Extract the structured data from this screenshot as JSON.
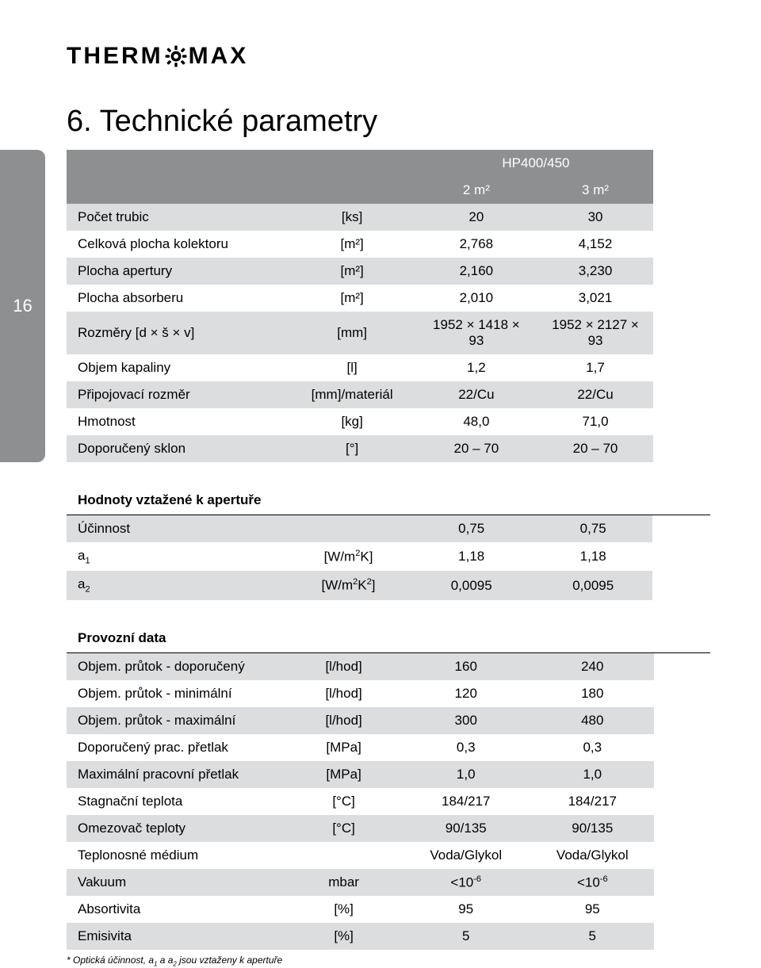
{
  "logo": {
    "part1": "THERM",
    "part2": "MAX"
  },
  "heading": "6. Technické parametry",
  "page_number": "16",
  "main_header": {
    "title": "HP400/450",
    "col1": "2 m²",
    "col2": "3 m²"
  },
  "main_rows": [
    {
      "label": "Počet trubic",
      "unit": "[ks]",
      "v1": "20",
      "v2": "30"
    },
    {
      "label": "Celková plocha kolektoru",
      "unit": "[m²]",
      "v1": "2,768",
      "v2": "4,152"
    },
    {
      "label": "Plocha apertury",
      "unit": "[m²]",
      "v1": "2,160",
      "v2": "3,230"
    },
    {
      "label": "Plocha absorberu",
      "unit": "[m²]",
      "v1": "2,010",
      "v2": "3,021"
    },
    {
      "label": "Rozměry [d × š × v]",
      "unit": "[mm]",
      "v1": "1952 × 1418 × 93",
      "v2": "1952 × 2127 × 93"
    },
    {
      "label": "Objem kapaliny",
      "unit": "[l]",
      "v1": "1,2",
      "v2": "1,7"
    },
    {
      "label": "Připojovací rozměr",
      "unit": "[mm]/materiál",
      "v1": "22/Cu",
      "v2": "22/Cu"
    },
    {
      "label": "Hmotnost",
      "unit": "[kg]",
      "v1": "48,0",
      "v2": "71,0"
    },
    {
      "label": "Doporučený sklon",
      "unit": "[°]",
      "v1": "20 – 70",
      "v2": "20 – 70"
    }
  ],
  "section_aperture": {
    "title": "Hodnoty vztažené k apertuře",
    "rows": [
      {
        "label": "Účinnost",
        "unit": "",
        "v1": "0,75",
        "v2": "0,75"
      },
      {
        "label_html": "a<sub>1</sub>",
        "unit_html": "[W/m<sup>2</sup>K]",
        "v1": "1,18",
        "v2": "1,18"
      },
      {
        "label_html": "a<sub>2</sub>",
        "unit_html": "[W/m<sup>2</sup>K<sup>2</sup>]",
        "v1": "0,0095",
        "v2": "0,0095"
      }
    ]
  },
  "section_operating": {
    "title": "Provozní data",
    "rows": [
      {
        "label": "Objem. průtok - doporučený",
        "unit": "[l/hod]",
        "v1": "160",
        "v2": "240"
      },
      {
        "label": "Objem. průtok - minimální",
        "unit": "[l/hod]",
        "v1": "120",
        "v2": "180"
      },
      {
        "label": "Objem. průtok - maximální",
        "unit": "[l/hod]",
        "v1": "300",
        "v2": "480"
      },
      {
        "label": "Doporučený prac. přetlak",
        "unit": "[MPa]",
        "v1": "0,3",
        "v2": "0,3"
      },
      {
        "label": "Maximální pracovní přetlak",
        "unit": "[MPa]",
        "v1": "1,0",
        "v2": "1,0"
      },
      {
        "label": "Stagnační teplota",
        "unit": "[°C]",
        "v1": "184/217",
        "v2": "184/217"
      },
      {
        "label": "Omezovač teploty",
        "unit": "[°C]",
        "v1": "90/135",
        "v2": "90/135"
      },
      {
        "label": "Teplonosné médium",
        "unit": "",
        "v1": "Voda/Glykol",
        "v2": "Voda/Glykol"
      },
      {
        "label": "Vakuum",
        "unit": "mbar",
        "v1_html": "<10<sup>-6</sup>",
        "v2_html": "<10<sup>-6</sup>"
      },
      {
        "label": "Absortivita",
        "unit": "[%]",
        "v1": "95",
        "v2": "95"
      },
      {
        "label": "Emisivita",
        "unit": "[%]",
        "v1": "5",
        "v2": "5"
      }
    ]
  },
  "footnote_html": "* Optická účinnost, a<sub>1</sub> a a<sub>2</sub> jsou vztaženy k apertuře"
}
